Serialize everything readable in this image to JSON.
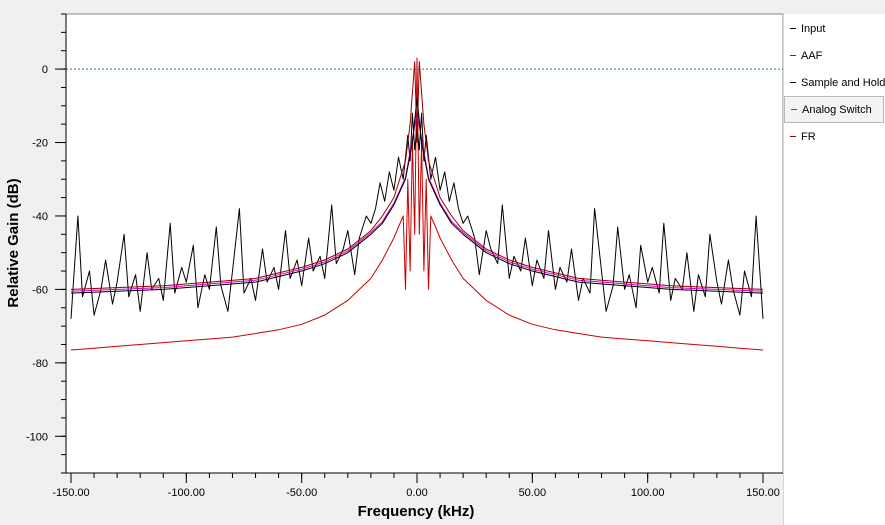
{
  "chart_data": {
    "type": "line",
    "title": "",
    "xlabel": "Frequency (kHz)",
    "ylabel": "Relative Gain (dB)",
    "xlim": [
      -150,
      150
    ],
    "ylim": [
      -110,
      15
    ],
    "x_ticks": [
      "-150.00",
      "-100.00",
      "-50.00",
      "0.00",
      "50.00",
      "100.00",
      "150.00"
    ],
    "y_ticks": [
      "0",
      "-20",
      "-40",
      "-60",
      "-80",
      "-100"
    ],
    "x_tick_values": [
      -150,
      -100,
      -50,
      0,
      50,
      100,
      150
    ],
    "y_tick_values": [
      0,
      -20,
      -40,
      -60,
      -80,
      -100
    ],
    "reference_line": {
      "y": 0,
      "color": "#1f7f8f"
    },
    "legend_position": "right",
    "series": [
      {
        "name": "Input",
        "color": "#000000",
        "x": [
          -150,
          -147,
          -145,
          -142,
          -140,
          -137,
          -135,
          -132,
          -130,
          -127,
          -125,
          -122,
          -120,
          -117,
          -115,
          -112,
          -110,
          -107,
          -105,
          -102,
          -100,
          -97,
          -95,
          -92,
          -90,
          -87,
          -85,
          -82,
          -80,
          -77,
          -75,
          -72,
          -70,
          -67,
          -65,
          -62,
          -60,
          -57,
          -55,
          -52,
          -50,
          -47,
          -45,
          -42,
          -40,
          -37,
          -35,
          -32,
          -30,
          -27,
          -25,
          -22,
          -20,
          -18,
          -16,
          -14,
          -12,
          -10,
          -8,
          -6,
          -4,
          -3,
          -2,
          -1,
          0,
          1,
          2,
          3,
          4,
          6,
          8,
          10,
          12,
          14,
          16,
          18,
          20,
          22,
          25,
          27,
          30,
          32,
          35,
          37,
          40,
          42,
          45,
          47,
          50,
          52,
          55,
          57,
          60,
          62,
          65,
          67,
          70,
          72,
          75,
          77,
          80,
          82,
          85,
          87,
          90,
          92,
          95,
          97,
          100,
          102,
          105,
          107,
          110,
          112,
          115,
          117,
          120,
          122,
          125,
          127,
          130,
          132,
          135,
          137,
          140,
          142,
          145,
          147,
          150
        ],
        "y": [
          -68,
          -40,
          -62,
          -55,
          -67,
          -60,
          -52,
          -64,
          -58,
          -45,
          -62,
          -56,
          -66,
          -50,
          -60,
          -57,
          -63,
          -42,
          -61,
          -54,
          -58,
          -48,
          -65,
          -56,
          -60,
          -43,
          -59,
          -66,
          -55,
          -38,
          -61,
          -57,
          -63,
          -49,
          -58,
          -54,
          -60,
          -44,
          -57,
          -52,
          -59,
          -46,
          -55,
          -51,
          -57,
          -37,
          -53,
          -49,
          -44,
          -56,
          -46,
          -40,
          -42,
          -38,
          -31,
          -36,
          -28,
          -33,
          -24,
          -30,
          -18,
          -25,
          -12,
          -22,
          -16,
          -22,
          -12,
          -25,
          -18,
          -30,
          -24,
          -33,
          -28,
          -36,
          -31,
          -38,
          -42,
          -40,
          -46,
          -56,
          -44,
          -49,
          -53,
          -37,
          -57,
          -51,
          -55,
          -46,
          -59,
          -52,
          -57,
          -44,
          -60,
          -54,
          -58,
          -49,
          -63,
          -57,
          -61,
          -38,
          -55,
          -66,
          -59,
          -43,
          -60,
          -56,
          -65,
          -48,
          -58,
          -54,
          -61,
          -42,
          -63,
          -57,
          -60,
          -50,
          -66,
          -56,
          -62,
          -45,
          -58,
          -64,
          -52,
          -60,
          -67,
          -55,
          -62,
          -40,
          -68
        ]
      },
      {
        "name": "AAF",
        "color": "#cc0000",
        "x": [
          -150,
          -140,
          -130,
          -120,
          -110,
          -100,
          -90,
          -80,
          -70,
          -60,
          -50,
          -40,
          -30,
          -20,
          -15,
          -10,
          -8,
          -6,
          -5,
          -4,
          -3,
          -2,
          -1,
          0,
          1,
          2,
          3,
          4,
          5,
          6,
          8,
          10,
          15,
          20,
          30,
          40,
          50,
          60,
          70,
          80,
          90,
          100,
          110,
          120,
          130,
          140,
          150
        ],
        "y": [
          -76.5,
          -76,
          -75.5,
          -75,
          -74.5,
          -74,
          -73.5,
          -73,
          -72,
          -71,
          -69.5,
          -67,
          -63,
          -57,
          -52,
          -46,
          -43,
          -40,
          -60,
          -30,
          -55,
          -20,
          -45,
          3,
          -45,
          -20,
          -55,
          -30,
          -60,
          -40,
          -43,
          -46,
          -52,
          -57,
          -63,
          -67,
          -69.5,
          -71,
          -72,
          -73,
          -73.5,
          -74,
          -74.5,
          -75,
          -75.5,
          -76,
          -76.5
        ]
      },
      {
        "name": "Sample and Hold",
        "color": "#000000",
        "x": [
          -150,
          -130,
          -110,
          -90,
          -70,
          -50,
          -40,
          -30,
          -20,
          -15,
          -10,
          -5,
          -2,
          0,
          2,
          5,
          10,
          15,
          20,
          30,
          40,
          50,
          70,
          90,
          110,
          130,
          150
        ],
        "y": [
          -61,
          -60.5,
          -60,
          -59,
          -58,
          -55,
          -53,
          -50,
          -45,
          -42,
          -37,
          -30,
          -20,
          -8,
          -20,
          -30,
          -37,
          -42,
          -45,
          -50,
          -53,
          -55,
          -58,
          -59,
          -60,
          -60.5,
          -61
        ]
      },
      {
        "name": "Analog Switch",
        "color": "#cc00cc",
        "x": [
          -150,
          -130,
          -110,
          -90,
          -70,
          -50,
          -40,
          -30,
          -20,
          -15,
          -10,
          -5,
          0,
          5,
          10,
          15,
          20,
          30,
          40,
          50,
          70,
          90,
          110,
          130,
          150
        ],
        "y": [
          -60.5,
          -60,
          -59.5,
          -58.5,
          -57.5,
          -54.5,
          -52.5,
          -49.5,
          -44.5,
          -41.5,
          -36.5,
          -29.5,
          -12,
          -29.5,
          -36.5,
          -41.5,
          -44.5,
          -49.5,
          -52.5,
          -54.5,
          -57.5,
          -58.5,
          -59.5,
          -60,
          -60.5
        ]
      },
      {
        "name": "FR",
        "color": "#990000",
        "x": [
          -150,
          -130,
          -110,
          -90,
          -70,
          -50,
          -40,
          -30,
          -20,
          -15,
          -10,
          -5,
          -3,
          -1,
          0,
          1,
          3,
          5,
          10,
          15,
          20,
          30,
          40,
          50,
          70,
          90,
          110,
          130,
          150
        ],
        "y": [
          -60,
          -59.5,
          -59,
          -58,
          -57,
          -54,
          -52,
          -49,
          -44,
          -40,
          -35,
          -25,
          -15,
          2,
          -20,
          2,
          -15,
          -25,
          -35,
          -40,
          -44,
          -49,
          -52,
          -54,
          -57,
          -58,
          -59,
          -59.5,
          -60
        ]
      }
    ]
  }
}
